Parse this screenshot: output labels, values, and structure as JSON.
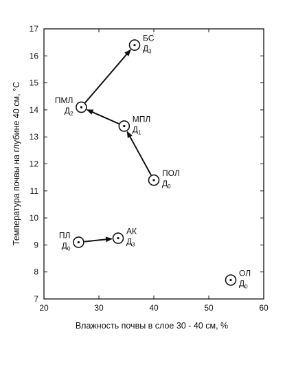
{
  "chart_data": {
    "type": "scatter",
    "xlabel": "Влажность почвы в слое 30 - 40 см, %",
    "ylabel": "Температура почвы на глубине 40 см, °С",
    "xlim": [
      20,
      60
    ],
    "ylim": [
      7,
      17
    ],
    "xticks": [
      20,
      30,
      40,
      50,
      60
    ],
    "yticks": [
      7,
      8,
      9,
      10,
      11,
      12,
      13,
      14,
      15,
      16,
      17
    ],
    "grid": false,
    "points": [
      {
        "label": "БС",
        "sub": "Д",
        "idx": "3",
        "x": 36.5,
        "y": 16.4
      },
      {
        "label": "ПМЛ",
        "sub": "Д",
        "idx": "2",
        "x": 26.8,
        "y": 14.1
      },
      {
        "label": "МПЛ",
        "sub": "Д",
        "idx": "1",
        "x": 34.6,
        "y": 13.4
      },
      {
        "label": "ПОЛ",
        "sub": "Д",
        "idx": "0",
        "x": 40.0,
        "y": 11.4
      },
      {
        "label": "ПЛ",
        "sub": "Д",
        "idx": "0",
        "x": 26.3,
        "y": 9.1
      },
      {
        "label": "АК",
        "sub": "Д",
        "idx": "3",
        "x": 33.5,
        "y": 9.25
      },
      {
        "label": "ОЛ",
        "sub": "Д",
        "idx": "0",
        "x": 54.0,
        "y": 7.7
      }
    ],
    "arrows": [
      {
        "from": "ПОЛ",
        "to": "МПЛ"
      },
      {
        "from": "МПЛ",
        "to": "ПМЛ"
      },
      {
        "from": "ПМЛ",
        "to": "БС"
      },
      {
        "from": "ПЛ",
        "to": "АК"
      }
    ]
  }
}
